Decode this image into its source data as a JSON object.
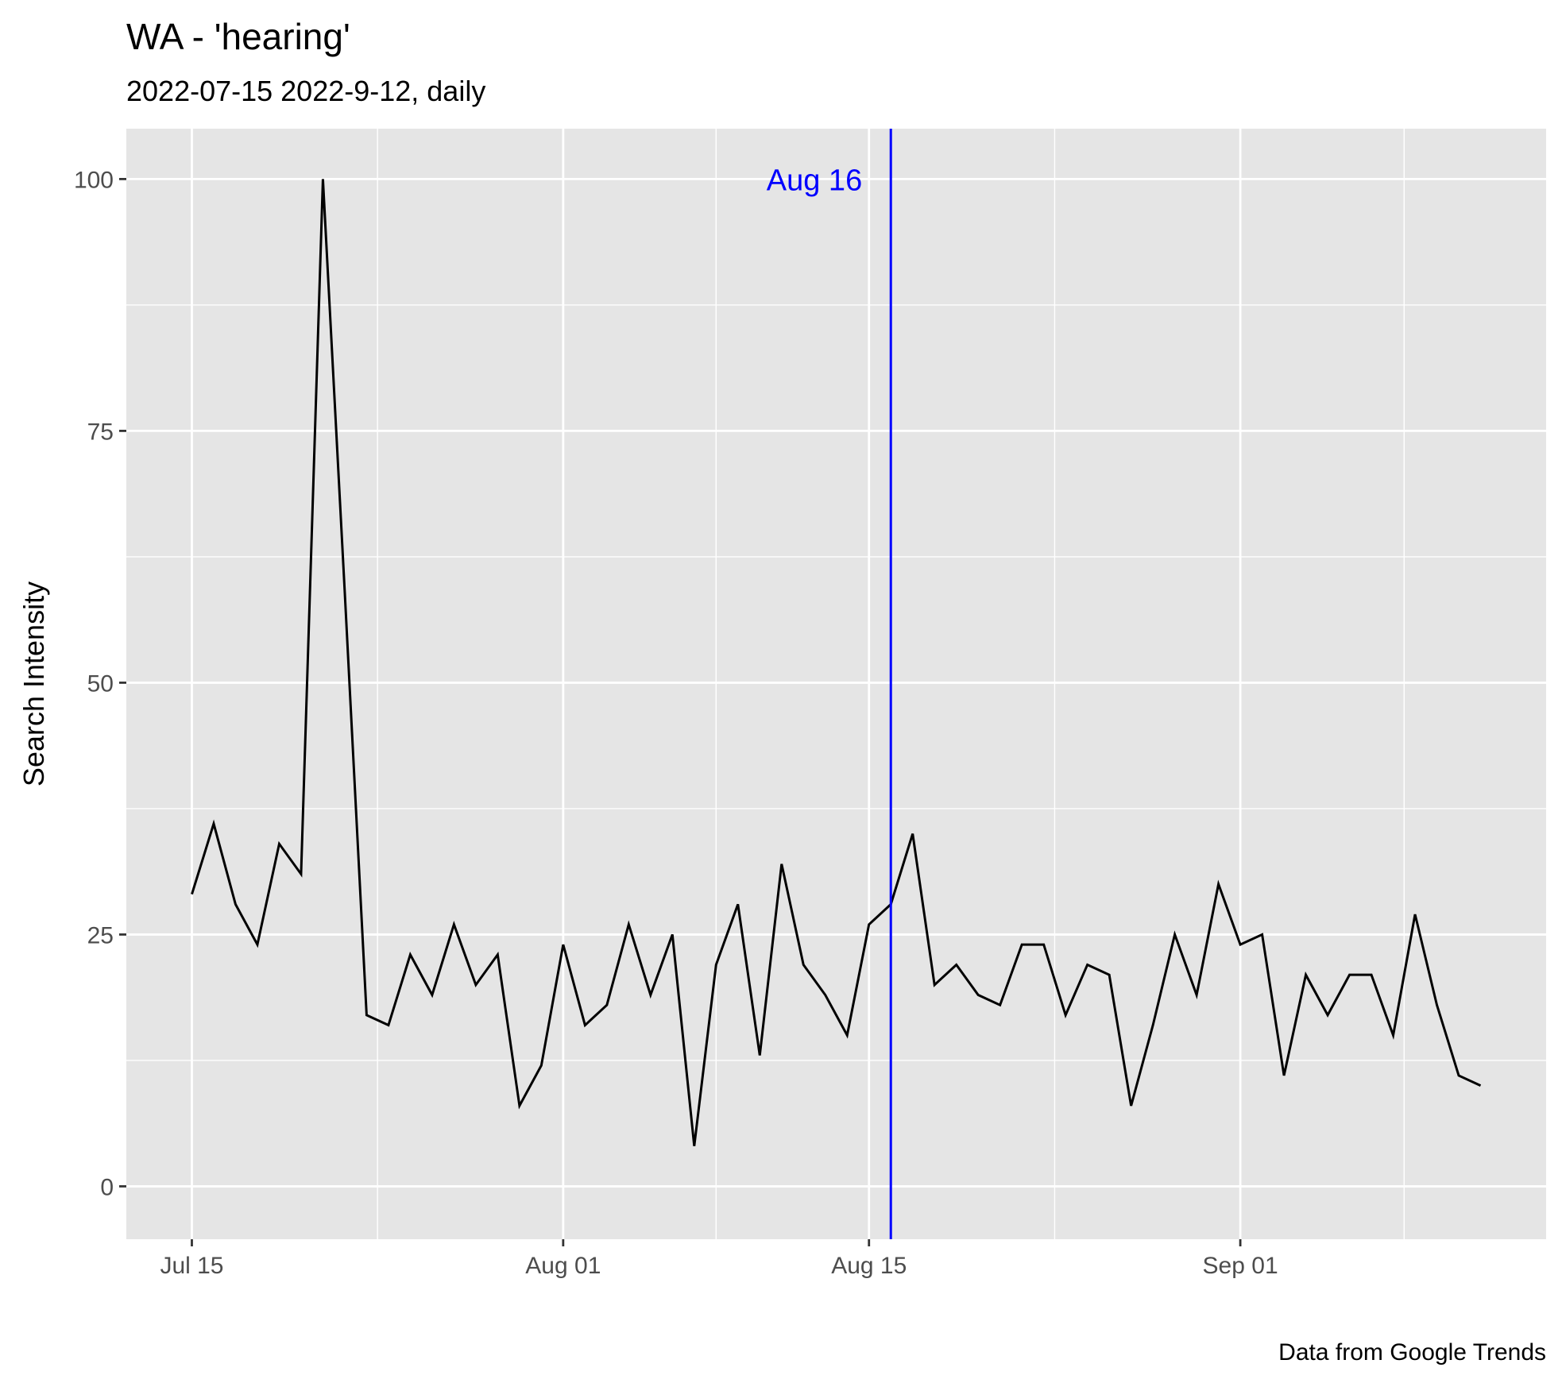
{
  "chart_data": {
    "type": "line",
    "title": "WA  - 'hearing'",
    "subtitle": "2022-07-15 2022-9-12, daily",
    "caption": "Data from Google Trends",
    "xlabel": "",
    "ylabel": "Search Intensity",
    "xlim": [
      "2022-07-12",
      "2022-09-15"
    ],
    "ylim": [
      -0.5,
      100
    ],
    "y_axis_max": 105,
    "yticks": [
      0,
      25,
      50,
      75,
      100
    ],
    "xticks": [
      {
        "date": "2022-07-15",
        "label": "Jul 15"
      },
      {
        "date": "2022-08-01",
        "label": "Aug 01"
      },
      {
        "date": "2022-08-15",
        "label": "Aug 15"
      },
      {
        "date": "2022-09-01",
        "label": "Sep 01"
      }
    ],
    "grid": true,
    "line_color": "#000000",
    "panel_color": "#e5e5e5",
    "vline": {
      "date": "2022-08-16",
      "label": "Aug 16",
      "color": "#0000ff"
    },
    "series": [
      {
        "x": [
          "2022-07-15",
          "2022-07-16",
          "2022-07-17",
          "2022-07-18",
          "2022-07-19",
          "2022-07-20",
          "2022-07-21",
          "2022-07-22",
          "2022-07-23",
          "2022-07-24",
          "2022-07-25",
          "2022-07-26",
          "2022-07-27",
          "2022-07-28",
          "2022-07-29",
          "2022-07-30",
          "2022-07-31",
          "2022-08-01",
          "2022-08-02",
          "2022-08-03",
          "2022-08-04",
          "2022-08-05",
          "2022-08-06",
          "2022-08-07",
          "2022-08-08",
          "2022-08-09",
          "2022-08-10",
          "2022-08-11",
          "2022-08-12",
          "2022-08-13",
          "2022-08-14",
          "2022-08-15",
          "2022-08-16",
          "2022-08-17",
          "2022-08-18",
          "2022-08-19",
          "2022-08-20",
          "2022-08-21",
          "2022-08-22",
          "2022-08-23",
          "2022-08-24",
          "2022-08-25",
          "2022-08-26",
          "2022-08-27",
          "2022-08-28",
          "2022-08-29",
          "2022-08-30",
          "2022-08-31",
          "2022-09-01",
          "2022-09-02",
          "2022-09-03",
          "2022-09-04",
          "2022-09-05",
          "2022-09-06",
          "2022-09-07",
          "2022-09-08",
          "2022-09-09",
          "2022-09-10",
          "2022-09-11",
          "2022-09-12"
        ],
        "values": [
          29,
          36,
          28,
          24,
          34,
          31,
          100,
          59,
          17,
          16,
          23,
          19,
          26,
          20,
          23,
          8,
          12,
          24,
          16,
          18,
          26,
          19,
          25,
          4,
          22,
          28,
          13,
          32,
          22,
          19,
          15,
          26,
          28,
          35,
          20,
          22,
          19,
          18,
          24,
          24,
          17,
          22,
          21,
          8,
          16,
          25,
          19,
          30,
          24,
          25,
          11,
          21,
          17,
          21,
          21,
          15,
          27,
          18,
          11,
          10
        ]
      }
    ]
  }
}
